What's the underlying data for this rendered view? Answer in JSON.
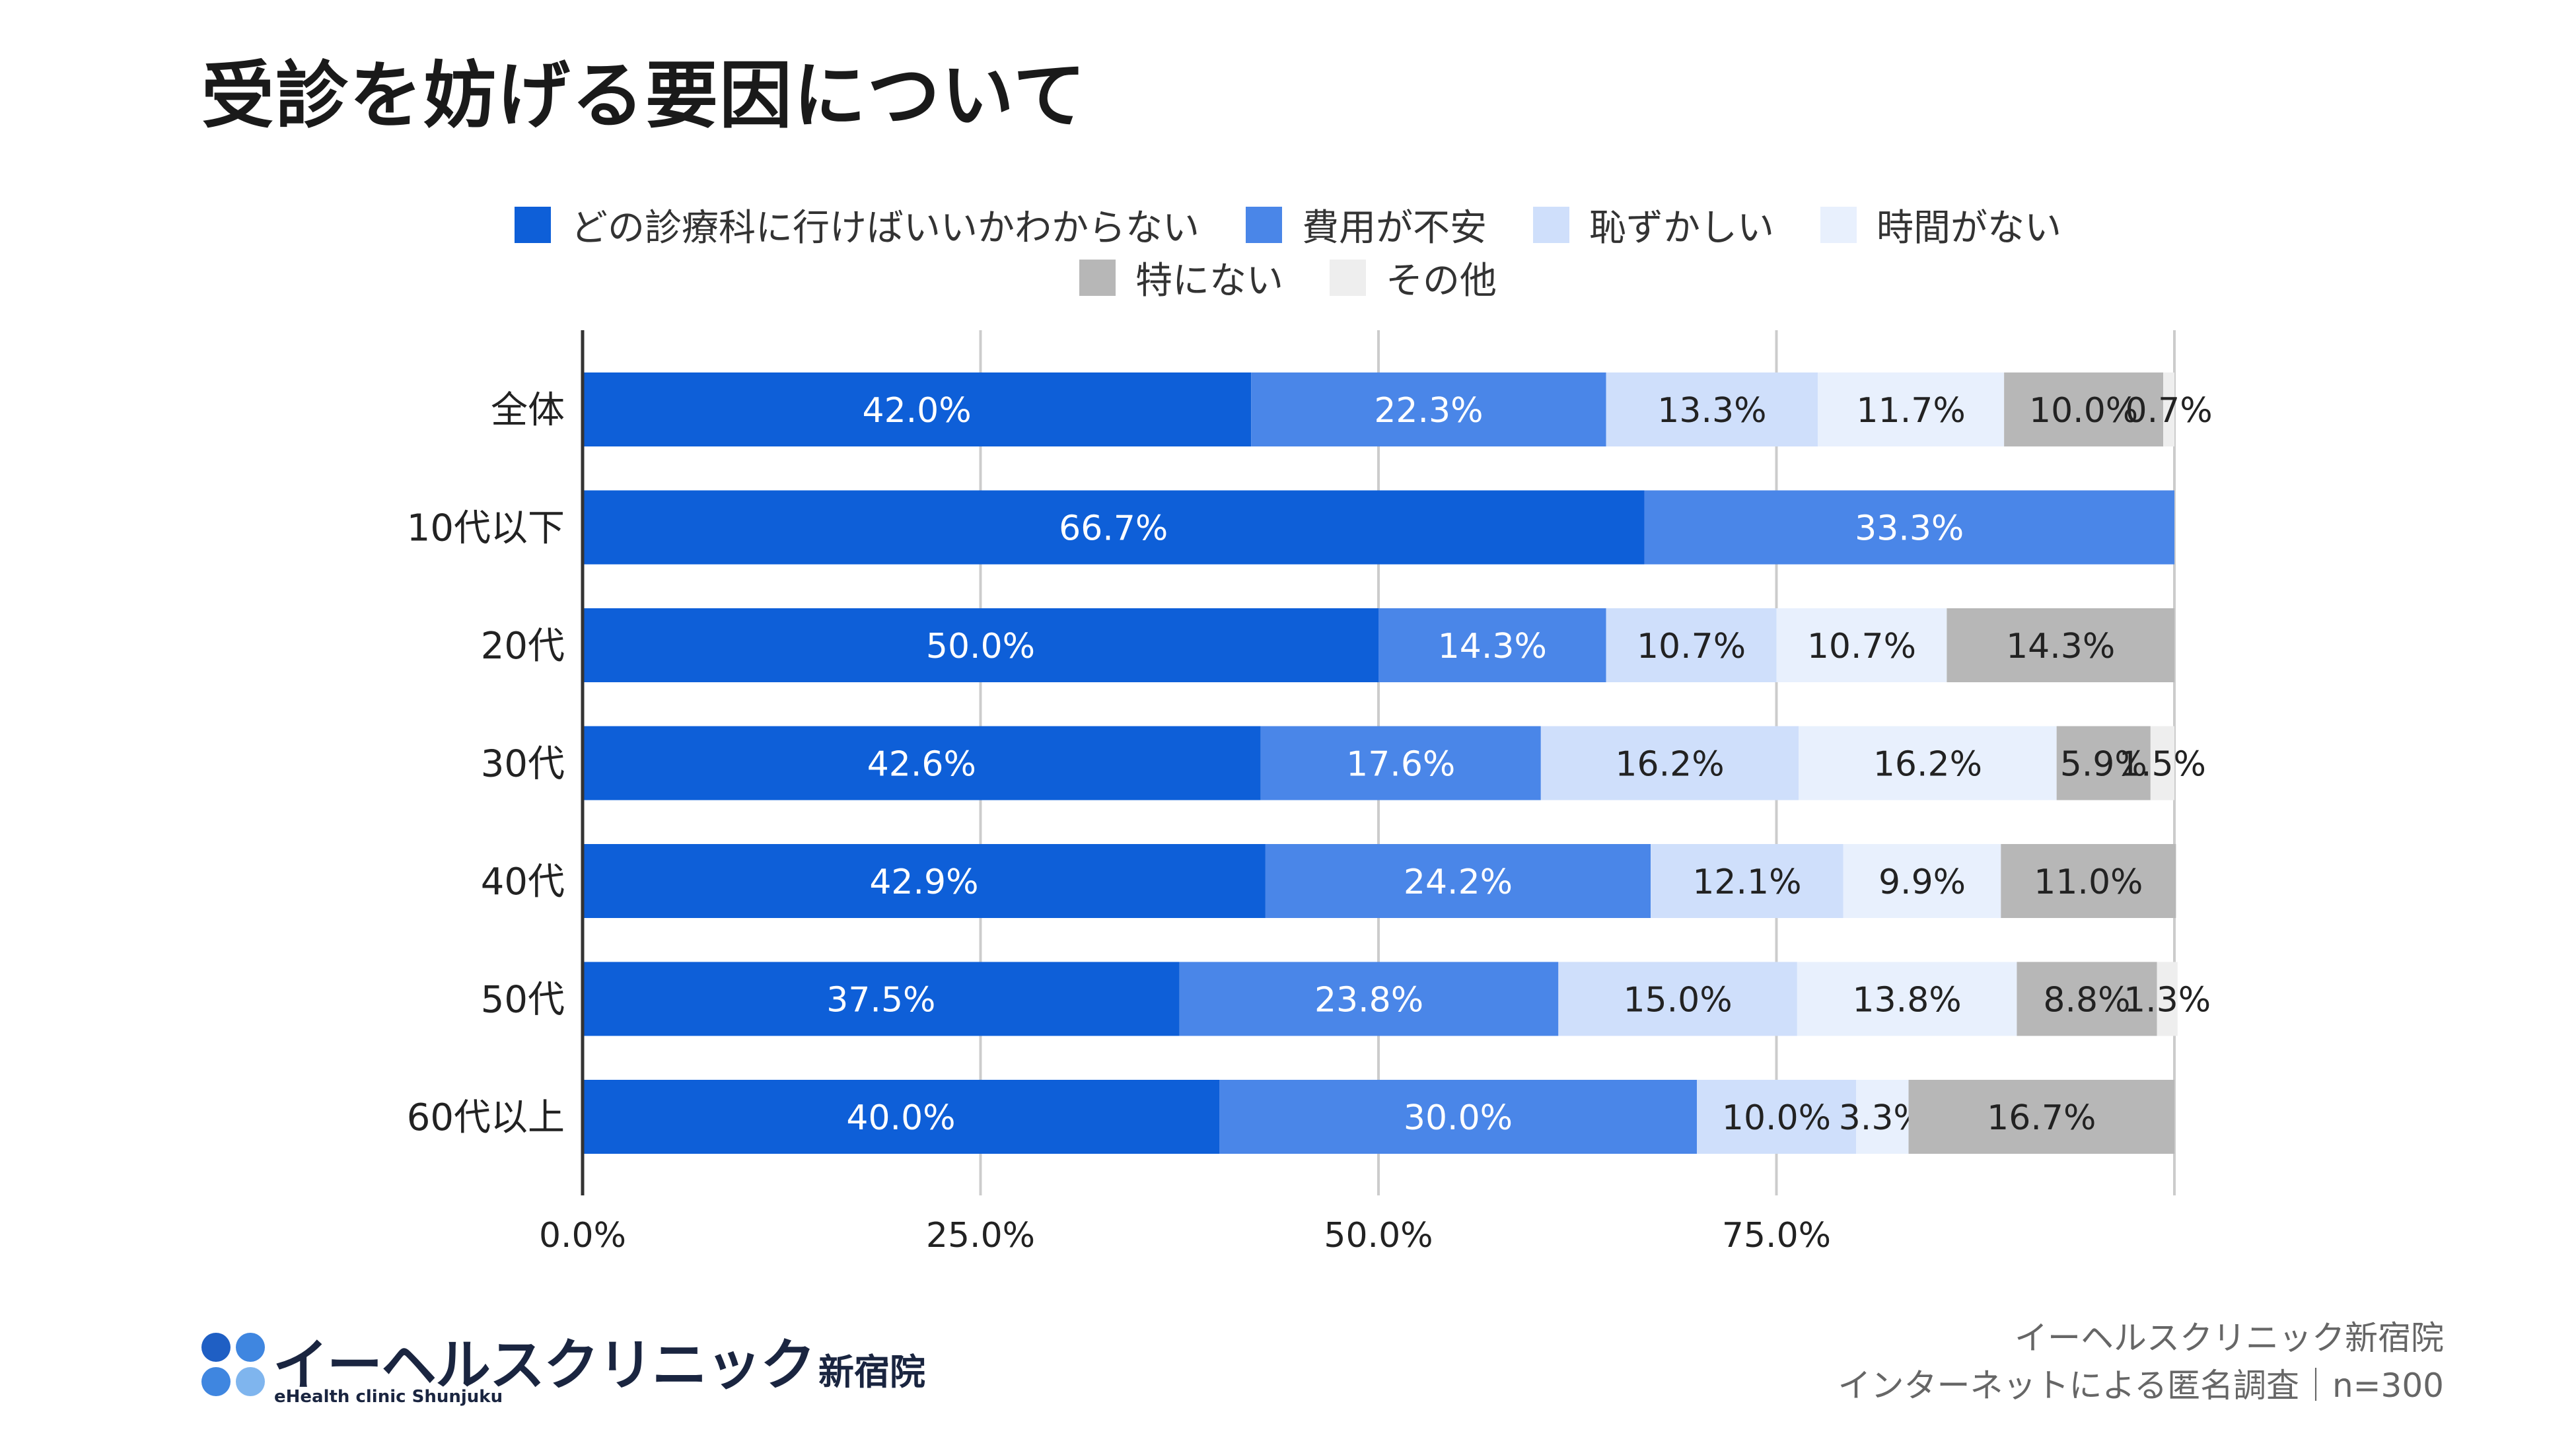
{
  "title": "受診を妨げる要因について",
  "footer": {
    "line1": "イーヘルスクリニック新宿院",
    "line2": "インターネットによる匿名調査｜n=300"
  },
  "logo": {
    "name": "イーヘルスクリニック",
    "branch": "新宿院",
    "sub": "eHealth clinic Shunjuku",
    "dot_colors": [
      "#1f5fc4",
      "#3f86e0",
      "#3f86e0",
      "#7fb5ee"
    ]
  },
  "legend": [
    {
      "label": "どの診療科に行けばいいかわからない",
      "color": "#0e5fd8"
    },
    {
      "label": "費用が不安",
      "color": "#4a86e8"
    },
    {
      "label": "恥ずかしい",
      "color": "#cfdffb"
    },
    {
      "label": "時間がない",
      "color": "#e8f0fd"
    },
    {
      "label": "特にない",
      "color": "#b7b7b7"
    },
    {
      "label": "その他",
      "color": "#eeeeee"
    }
  ],
  "chart_data": {
    "type": "bar",
    "orientation": "horizontal",
    "stacked": true,
    "title": "受診を妨げる要因について",
    "categories": [
      "全体",
      "10代以下",
      "20代",
      "30代",
      "40代",
      "50代",
      "60代以上"
    ],
    "series": [
      {
        "name": "どの診療科に行けばいいかわからない",
        "values": [
          42.0,
          66.7,
          50.0,
          42.6,
          42.9,
          37.5,
          40.0
        ]
      },
      {
        "name": "費用が不安",
        "values": [
          22.3,
          33.3,
          14.3,
          17.6,
          24.2,
          23.8,
          30.0
        ]
      },
      {
        "name": "恥ずかしい",
        "values": [
          13.3,
          0,
          10.7,
          16.2,
          12.1,
          15.0,
          10.0
        ]
      },
      {
        "name": "時間がない",
        "values": [
          11.7,
          0,
          10.7,
          16.2,
          9.9,
          13.8,
          3.3
        ]
      },
      {
        "name": "特にない",
        "values": [
          10.0,
          0,
          14.3,
          5.9,
          11.0,
          8.8,
          16.7
        ]
      },
      {
        "name": "その他",
        "values": [
          0.7,
          0,
          0,
          1.5,
          0,
          1.3,
          0
        ]
      }
    ],
    "value_labels": [
      [
        "42.0%",
        "22.3%",
        "13.3%",
        "11.7%",
        "10.0%",
        "0.7%"
      ],
      [
        "66.7%",
        "33.3%",
        "",
        "",
        "",
        ""
      ],
      [
        "50.0%",
        "14.3%",
        "10.7%",
        "10.7%",
        "14.3%",
        ""
      ],
      [
        "42.6%",
        "17.6%",
        "16.2%",
        "16.2%",
        "5.9%",
        "1.5%"
      ],
      [
        "42.9%",
        "24.2%",
        "12.1%",
        "9.9%",
        "11.0%",
        ""
      ],
      [
        "37.5%",
        "23.8%",
        "15.0%",
        "13.8%",
        "8.8%",
        "1.3%"
      ],
      [
        "40.0%",
        "30.0%",
        "10.0%",
        "3.3%",
        "16.7%",
        ""
      ]
    ],
    "label_colors": [
      "#ffffff",
      "#ffffff",
      "#222222",
      "#222222",
      "#222222",
      "#222222"
    ],
    "xticks": [
      "0.0%",
      "25.0%",
      "50.0%",
      "75.0%"
    ],
    "xtick_values": [
      0,
      25,
      50,
      75
    ],
    "xlim": [
      0,
      100
    ],
    "grid": true,
    "legend_position": "top-center"
  }
}
